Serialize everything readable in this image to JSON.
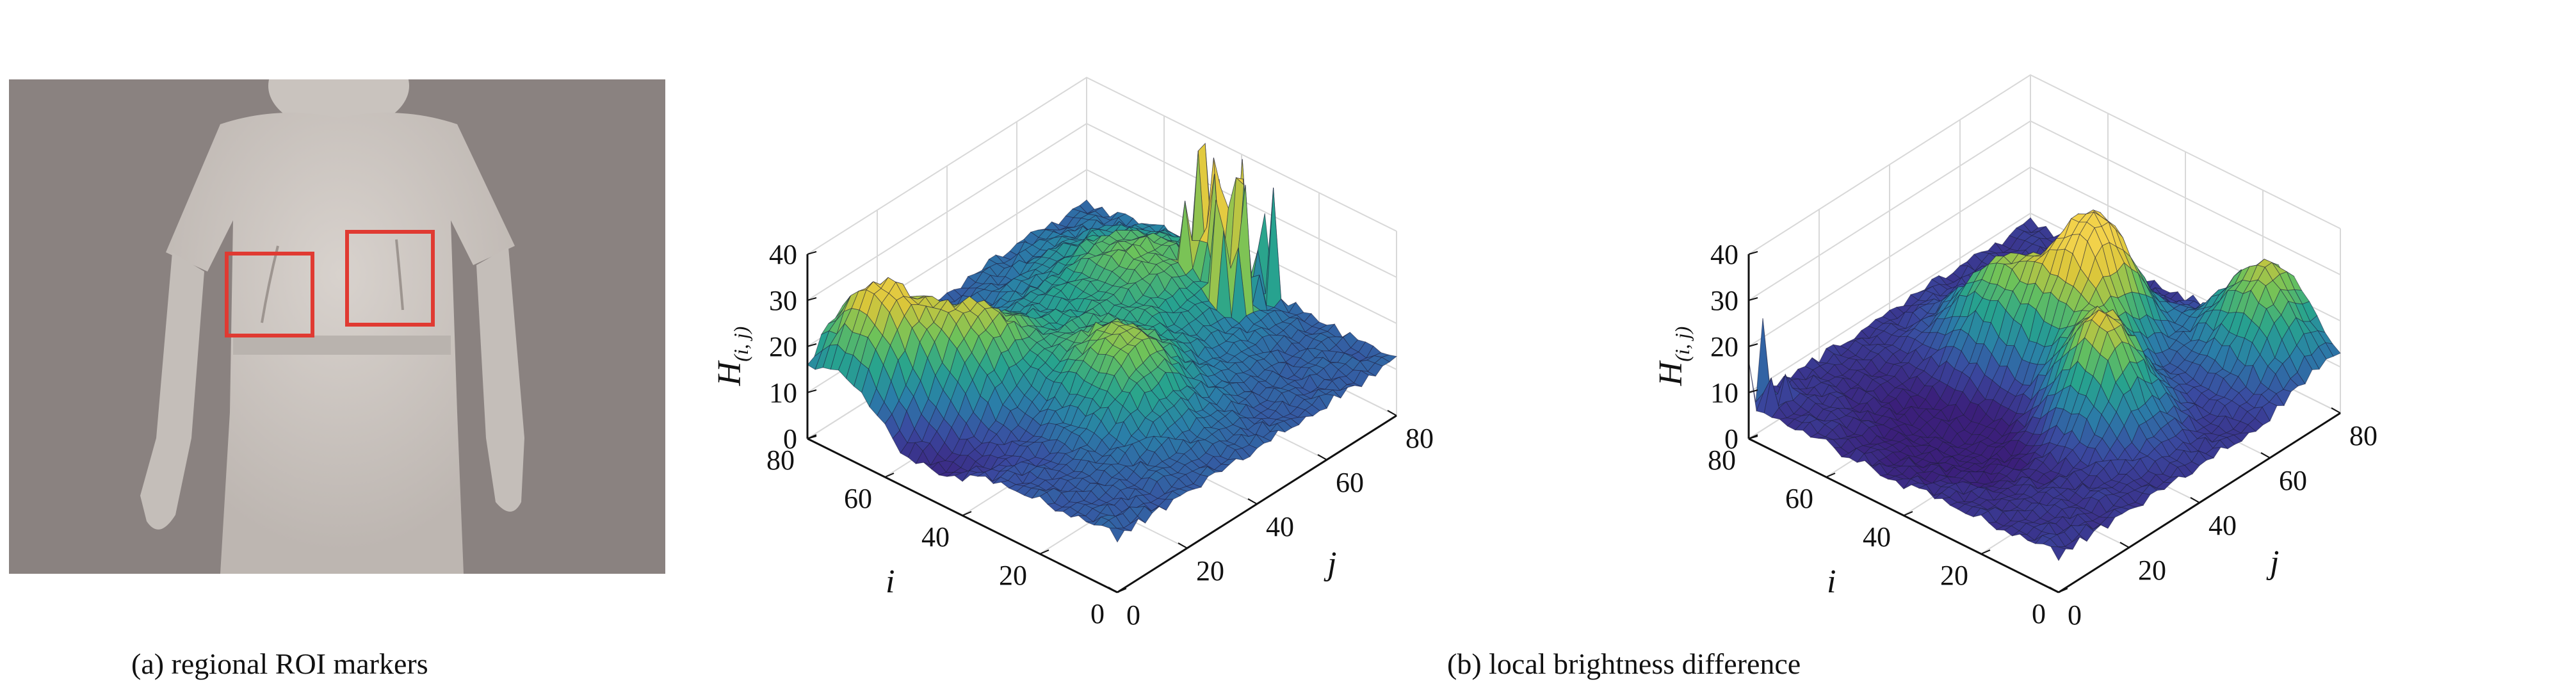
{
  "figure": {
    "caption_a": "(a) regional ROI markers",
    "caption_b": "(b) local brightness difference"
  },
  "colors": {
    "background": "#ffffff",
    "thermal_background": "#8a8280",
    "thermal_body": "#cbc5c0",
    "roi_box": "#e03a32",
    "colormap": [
      "#3b1f7a",
      "#3a4aa0",
      "#2a7fa8",
      "#27a38e",
      "#6cc25a",
      "#d9c63a",
      "#f2d24a"
    ]
  },
  "chart_data": [
    {
      "type": "surface",
      "title": "",
      "xlabel": "i",
      "ylabel": "j",
      "zlabel": "H(i,j)",
      "zlabel_main": "H",
      "zlabel_sub": "(i, j)",
      "xlim": [
        0,
        80
      ],
      "ylim": [
        0,
        80
      ],
      "zlim": [
        0,
        40
      ],
      "xticks": [
        "0",
        "20",
        "40",
        "60",
        "80"
      ],
      "yticks": [
        "0",
        "20",
        "40",
        "60",
        "80"
      ],
      "zticks": [
        "0",
        "10",
        "20",
        "30",
        "40"
      ],
      "grid": true,
      "peaks": [
        {
          "i": 70,
          "j": 10,
          "z": 33,
          "sx": 9,
          "sy": 8
        },
        {
          "i": 55,
          "j": 20,
          "z": 26,
          "sx": 8,
          "sy": 8
        },
        {
          "i": 30,
          "j": 35,
          "z": 22,
          "sx": 10,
          "sy": 9
        },
        {
          "i": 55,
          "j": 35,
          "z": 12,
          "sx": 10,
          "sy": 10
        },
        {
          "i": 50,
          "j": 62,
          "z": 20,
          "sx": 14,
          "sy": 12
        }
      ],
      "base": 12,
      "spikes": {
        "region": {
          "i": [
            30,
            45
          ],
          "j": [
            65,
            80
          ]
        },
        "max": 44
      },
      "valley": {
        "i": 58,
        "j": 8,
        "depth": 10
      }
    },
    {
      "type": "surface",
      "title": "",
      "xlabel": "i",
      "ylabel": "j",
      "zlabel": "H(i,j)",
      "zlabel_main": "H",
      "zlabel_sub": "(i, j)",
      "xlim": [
        0,
        80
      ],
      "ylim": [
        0,
        80
      ],
      "zlim": [
        0,
        40
      ],
      "xticks": [
        "0",
        "20",
        "40",
        "60",
        "80"
      ],
      "yticks": [
        "0",
        "20",
        "40",
        "60",
        "80"
      ],
      "zticks": [
        "0",
        "10",
        "20",
        "30",
        "40"
      ],
      "grid": true,
      "peaks": [
        {
          "i": 40,
          "j": 55,
          "z": 34,
          "sx": 7,
          "sy": 8
        },
        {
          "i": 25,
          "j": 40,
          "z": 28,
          "sx": 8,
          "sy": 7
        },
        {
          "i": 55,
          "j": 45,
          "z": 24,
          "sx": 9,
          "sy": 8
        },
        {
          "i": 15,
          "j": 75,
          "z": 25,
          "sx": 9,
          "sy": 8
        }
      ],
      "base": 8,
      "spikes": {
        "region": {
          "i": [
            75,
            80
          ],
          "j": [
            0,
            6
          ]
        },
        "max": 30
      },
      "valley": {
        "i": 45,
        "j": 25,
        "depth": 6
      }
    }
  ]
}
